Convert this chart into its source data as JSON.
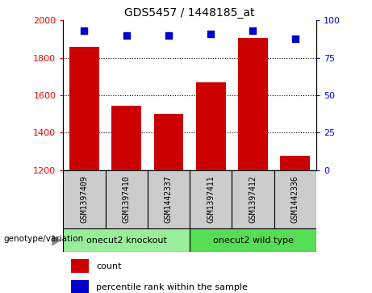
{
  "title": "GDS5457 / 1448185_at",
  "categories": [
    "GSM1397409",
    "GSM1397410",
    "GSM1442337",
    "GSM1397411",
    "GSM1397412",
    "GSM1442336"
  ],
  "counts": [
    1860,
    1545,
    1500,
    1670,
    1905,
    1275
  ],
  "percentiles": [
    93,
    90,
    90,
    91,
    93,
    88
  ],
  "ylim_left": [
    1200,
    2000
  ],
  "ylim_right": [
    0,
    100
  ],
  "yticks_left": [
    1200,
    1400,
    1600,
    1800,
    2000
  ],
  "yticks_right": [
    0,
    25,
    50,
    75,
    100
  ],
  "bar_color": "#cc0000",
  "dot_color": "#0000cc",
  "bg_color": "#cccccc",
  "groups": [
    {
      "label": "onecut2 knockout",
      "indices": [
        0,
        1,
        2
      ],
      "color": "#99ee99"
    },
    {
      "label": "onecut2 wild type",
      "indices": [
        3,
        4,
        5
      ],
      "color": "#55dd55"
    }
  ],
  "group_label": "genotype/variation",
  "legend_count_label": "count",
  "legend_percentile_label": "percentile rank within the sample",
  "bar_width": 0.7,
  "dot_size": 35,
  "figsize": [
    4.61,
    3.63
  ],
  "dpi": 100
}
